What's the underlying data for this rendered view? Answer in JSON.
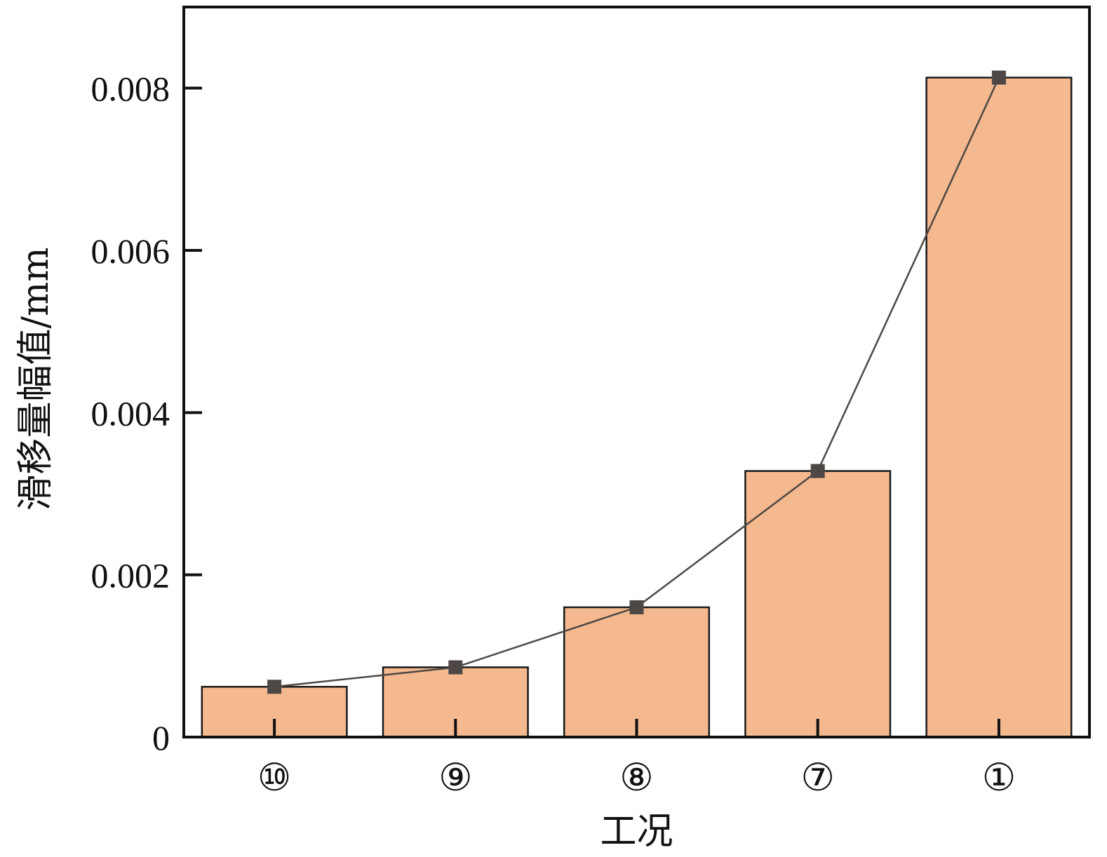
{
  "chart_data": {
    "type": "bar",
    "categories": [
      "⑩",
      "⑨",
      "⑧",
      "⑦",
      "①"
    ],
    "values": [
      0.00062,
      0.00086,
      0.0016,
      0.00328,
      0.00813
    ],
    "line_values": [
      0.00062,
      0.00086,
      0.0016,
      0.00328,
      0.00813
    ],
    "xlabel": "工况",
    "ylabel": "滑移量幅值/mm",
    "ylim": [
      0,
      0.009
    ],
    "yticks": [
      0,
      0.002,
      0.004,
      0.006,
      0.008
    ],
    "ytick_labels": [
      "0",
      "0.002",
      "0.004",
      "0.006",
      "0.008"
    ],
    "grid": false,
    "colors": {
      "bar_fill": "#f5b98f",
      "bar_stroke": "#1a1a1a",
      "line": "#4d4845",
      "marker": "#4d4845",
      "axis": "#111111"
    }
  }
}
